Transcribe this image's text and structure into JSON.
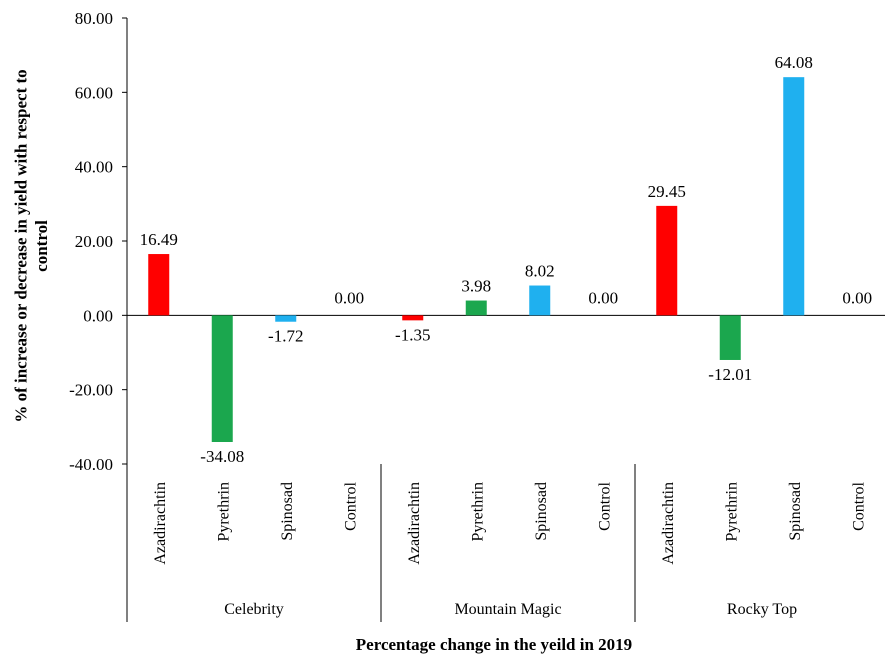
{
  "chart_data": {
    "type": "bar",
    "ylabel": "% of increase or decrease in yield with respect to control",
    "xlabel": "Percentage change in the yeild in 2019",
    "ylim": [
      -40,
      80
    ],
    "yticks": [
      "80.00",
      "60.00",
      "40.00",
      "20.00",
      "0.00",
      "-20.00",
      "-40.00"
    ],
    "ytick_values": [
      80,
      60,
      40,
      20,
      0,
      -20,
      -40
    ],
    "grid": false,
    "groups": [
      {
        "name": "Celebrity",
        "categories": [
          "Azadirachtin",
          "Pyrethrin",
          "Spinosad",
          "Control"
        ],
        "values": [
          16.49,
          -34.08,
          -1.72,
          0.0
        ],
        "labels": [
          "16.49",
          "-34.08",
          "-1.72",
          "0.00"
        ]
      },
      {
        "name": "Mountain Magic",
        "categories": [
          "Azadirachtin",
          "Pyrethrin",
          "Spinosad",
          "Control"
        ],
        "values": [
          -1.35,
          3.98,
          8.02,
          0.0
        ],
        "labels": [
          "-1.35",
          "3.98",
          "8.02",
          "0.00"
        ]
      },
      {
        "name": "Rocky Top",
        "categories": [
          "Azadirachtin",
          "Pyrethrin",
          "Spinosad",
          "Control"
        ],
        "values": [
          29.45,
          -12.01,
          64.08,
          0.0
        ],
        "labels": [
          "29.45",
          "-12.01",
          "64.08",
          "0.00"
        ]
      }
    ],
    "colors": {
      "Azadirachtin": "#ff0000",
      "Pyrethrin": "#1ba74e",
      "Spinosad": "#1fb0ef",
      "Control": "#ffffff"
    }
  }
}
